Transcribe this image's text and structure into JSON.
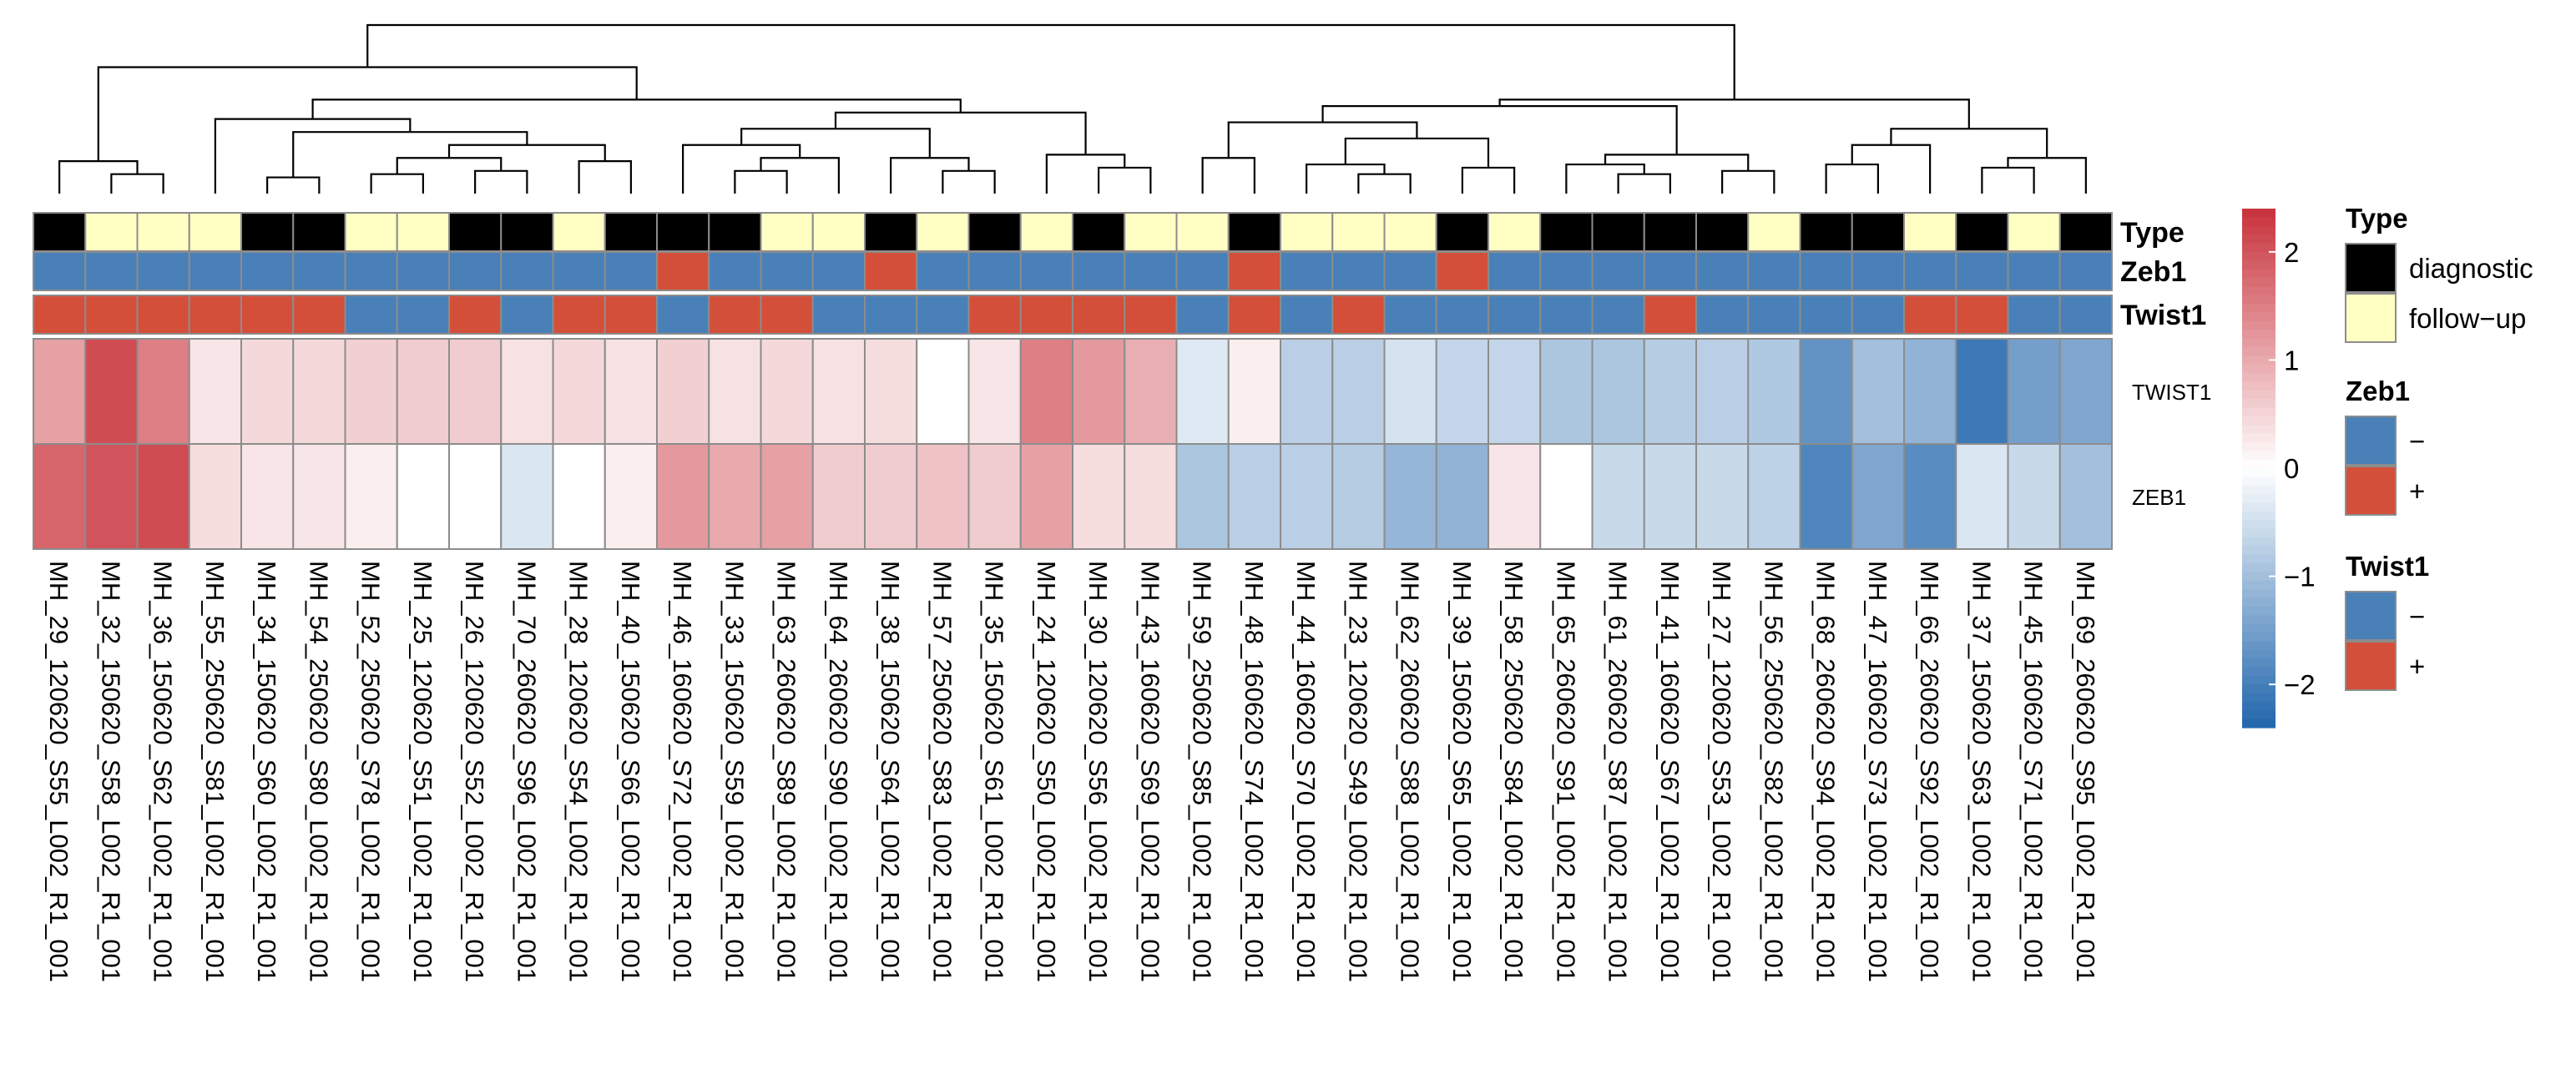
{
  "chart_data": {
    "type": "heatmap",
    "title": "",
    "rows": [
      "TWIST1",
      "ZEB1"
    ],
    "columns": [
      "MH_29_120620_S55_L002_R1_001",
      "MH_32_150620_S58_L002_R1_001",
      "MH_36_150620_S62_L002_R1_001",
      "MH_55_250620_S81_L002_R1_001",
      "MH_34_150620_S60_L002_R1_001",
      "MH_54_250620_S80_L002_R1_001",
      "MH_52_250620_S78_L002_R1_001",
      "MH_25_120620_S51_L002_R1_001",
      "MH_26_120620_S52_L002_R1_001",
      "MH_70_260620_S96_L002_R1_001",
      "MH_28_120620_S54_L002_R1_001",
      "MH_40_150620_S66_L002_R1_001",
      "MH_46_160620_S72_L002_R1_001",
      "MH_33_150620_S59_L002_R1_001",
      "MH_63_260620_S89_L002_R1_001",
      "MH_64_260620_S90_L002_R1_001",
      "MH_38_150620_S64_L002_R1_001",
      "MH_57_250620_S83_L002_R1_001",
      "MH_35_150620_S61_L002_R1_001",
      "MH_24_120620_S50_L002_R1_001",
      "MH_30_120620_S56_L002_R1_001",
      "MH_43_160620_S69_L002_R1_001",
      "MH_59_250620_S85_L002_R1_001",
      "MH_48_160620_S74_L002_R1_001",
      "MH_44_160620_S70_L002_R1_001",
      "MH_23_120620_S49_L002_R1_001",
      "MH_62_260620_S88_L002_R1_001",
      "MH_39_150620_S65_L002_R1_001",
      "MH_58_250620_S84_L002_R1_001",
      "MH_65_260620_S91_L002_R1_001",
      "MH_61_260620_S87_L002_R1_001",
      "MH_41_160620_S67_L002_R1_001",
      "MH_27_120620_S53_L002_R1_001",
      "MH_56_250620_S82_L002_R1_001",
      "MH_68_260620_S94_L002_R1_001",
      "MH_47_160620_S73_L002_R1_001",
      "MH_66_260620_S92_L002_R1_001",
      "MH_37_150620_S63_L002_R1_001",
      "MH_45_160620_S71_L002_R1_001",
      "MH_69_260620_S95_L002_R1_001"
    ],
    "values": [
      [
        1.1,
        2.1,
        1.5,
        0.3,
        0.45,
        0.45,
        0.55,
        0.6,
        0.6,
        0.35,
        0.45,
        0.35,
        0.55,
        0.35,
        0.45,
        0.35,
        0.4,
        0.0,
        0.3,
        1.5,
        1.2,
        0.95,
        -0.35,
        0.2,
        -0.75,
        -0.75,
        -0.45,
        -0.65,
        -0.65,
        -0.9,
        -0.9,
        -0.8,
        -0.75,
        -0.85,
        -1.7,
        -1.0,
        -1.2,
        -2.1,
        -1.5,
        -1.4
      ],
      [
        1.8,
        2.0,
        2.1,
        0.4,
        0.3,
        0.3,
        0.2,
        0.0,
        0.0,
        -0.4,
        0.0,
        0.2,
        1.2,
        1.0,
        1.1,
        0.6,
        0.6,
        0.7,
        0.6,
        1.1,
        0.4,
        0.4,
        -0.9,
        -0.75,
        -0.75,
        -0.8,
        -1.15,
        -1.2,
        0.3,
        0.0,
        -0.6,
        -0.6,
        -0.6,
        -0.7,
        -1.9,
        -1.4,
        -1.8,
        -0.4,
        -0.6,
        -1.0
      ]
    ],
    "color_scale": {
      "min": -2.4,
      "max": 2.4,
      "low_color": "#2166ac",
      "mid_color": "#ffffff",
      "high_color": "#c8323b",
      "ticks": [
        2,
        1,
        0,
        -1,
        -2
      ],
      "tick_labels": [
        "2",
        "1",
        "0",
        "−1",
        "−2"
      ]
    },
    "annotations": [
      {
        "name": "Type",
        "levels": [
          "diagnostic",
          "follow−up"
        ],
        "colors": [
          "#000000",
          "#ffffc4"
        ],
        "values": [
          0,
          1,
          1,
          1,
          0,
          0,
          1,
          1,
          0,
          0,
          1,
          0,
          0,
          0,
          1,
          1,
          0,
          1,
          0,
          1,
          0,
          1,
          1,
          0,
          1,
          1,
          1,
          0,
          1,
          0,
          0,
          0,
          0,
          1,
          0,
          0,
          1,
          0,
          1,
          0
        ]
      },
      {
        "name": "Zeb1",
        "levels": [
          "−",
          "+"
        ],
        "colors": [
          "#4a80b8",
          "#d44f3a"
        ],
        "values": [
          0,
          0,
          0,
          0,
          0,
          0,
          0,
          0,
          0,
          0,
          0,
          0,
          1,
          0,
          0,
          0,
          1,
          0,
          0,
          0,
          0,
          0,
          0,
          1,
          0,
          0,
          0,
          1,
          0,
          0,
          0,
          0,
          0,
          0,
          0,
          0,
          0,
          0,
          0,
          0
        ]
      },
      {
        "name": "Twist1",
        "levels": [
          "−",
          "+"
        ],
        "colors": [
          "#4a80b8",
          "#d44f3a"
        ],
        "values": [
          1,
          1,
          1,
          1,
          1,
          1,
          0,
          0,
          1,
          0,
          1,
          1,
          0,
          1,
          1,
          0,
          0,
          0,
          1,
          1,
          1,
          1,
          0,
          1,
          0,
          1,
          0,
          0,
          0,
          0,
          0,
          1,
          0,
          0,
          0,
          0,
          1,
          1,
          0,
          0
        ]
      }
    ],
    "dendrogram": {
      "nodes": [
        {
          "l": "L1",
          "r": "L2",
          "h": 0.3
        },
        {
          "l": "N0",
          "r": "L0",
          "h": 0.5
        },
        {
          "l": "L4",
          "r": "L5",
          "h": 0.25
        },
        {
          "l": "L6",
          "r": "L7",
          "h": 0.3
        },
        {
          "l": "L8",
          "r": "L9",
          "h": 0.35
        },
        {
          "l": "N3",
          "r": "N4",
          "h": 0.55
        },
        {
          "l": "L10",
          "r": "L11",
          "h": 0.5
        },
        {
          "l": "N5",
          "r": "N6",
          "h": 0.75
        },
        {
          "l": "N2",
          "r": "N7",
          "h": 0.95
        },
        {
          "l": "L3",
          "r": "N8",
          "h": 1.15
        },
        {
          "l": "L13",
          "r": "L14",
          "h": 0.35
        },
        {
          "l": "N10",
          "r": "L15",
          "h": 0.55
        },
        {
          "l": "L12",
          "r": "N11",
          "h": 0.75
        },
        {
          "l": "L17",
          "r": "L18",
          "h": 0.35
        },
        {
          "l": "L16",
          "r": "N13",
          "h": 0.55
        },
        {
          "l": "N12",
          "r": "N14",
          "h": 1.0
        },
        {
          "l": "L20",
          "r": "L21",
          "h": 0.4
        },
        {
          "l": "L19",
          "r": "N16",
          "h": 0.6
        },
        {
          "l": "N15",
          "r": "N17",
          "h": 1.25
        },
        {
          "l": "N9",
          "r": "N18",
          "h": 1.45
        },
        {
          "l": "N1",
          "r": "N19",
          "h": 1.95
        },
        {
          "l": "L22",
          "r": "L23",
          "h": 0.55
        },
        {
          "l": "L25",
          "r": "L26",
          "h": 0.3
        },
        {
          "l": "L24",
          "r": "N22",
          "h": 0.45
        },
        {
          "l": "L27",
          "r": "L28",
          "h": 0.4
        },
        {
          "l": "N23",
          "r": "N24",
          "h": 0.85
        },
        {
          "l": "N21",
          "r": "N25",
          "h": 1.1
        },
        {
          "l": "L30",
          "r": "L31",
          "h": 0.3
        },
        {
          "l": "L29",
          "r": "N27",
          "h": 0.45
        },
        {
          "l": "L32",
          "r": "L33",
          "h": 0.35
        },
        {
          "l": "N28",
          "r": "N29",
          "h": 0.6
        },
        {
          "l": "N26",
          "r": "N30",
          "h": 1.35
        },
        {
          "l": "L34",
          "r": "L35",
          "h": 0.45
        },
        {
          "l": "N32",
          "r": "L36",
          "h": 0.75
        },
        {
          "l": "L37",
          "r": "L38",
          "h": 0.4
        },
        {
          "l": "N34",
          "r": "L39",
          "h": 0.55
        },
        {
          "l": "N33",
          "r": "N35",
          "h": 1.0
        },
        {
          "l": "N31",
          "r": "N36",
          "h": 1.45
        },
        {
          "l": "N20",
          "r": "N37",
          "h": 2.6
        }
      ]
    }
  }
}
